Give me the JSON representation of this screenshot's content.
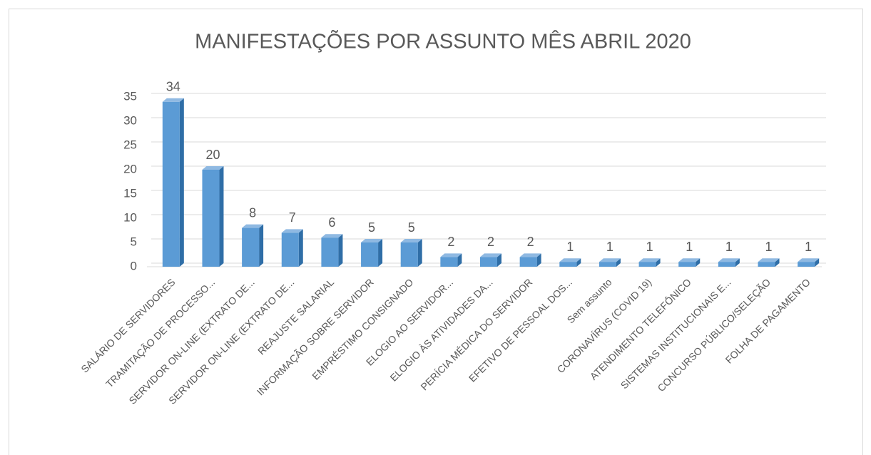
{
  "chart_data": {
    "type": "bar3d",
    "title": "MANIFESTAÇÕES POR ASSUNTO MÊS ABRIL 2020",
    "categories": [
      "SALÁRIO DE SERVIDORES",
      "TRAMITAÇÃO DE PROCESSO...",
      "SERVIDOR ON-LINE (EXTRATO DE...",
      "SERVIDOR ON-LINE (EXTRATO DE...",
      "REAJUSTE SALARIAL",
      "INFORMAÇÃO SOBRE SERVIDOR",
      "EMPRÉSTIMO CONSIGNADO",
      "ELOGIO AO SERVIDOR...",
      "ELOGIO ÀS ATIVIDADES DA...",
      "PERÍCIA MÉDICA DO SERVIDOR",
      "EFETIVO DE PESSOAL DOS...",
      "Sem assunto",
      "CORONAVÍRUS (COVID 19)",
      "ATENDIMENTO TELEFÔNICO",
      "SISTEMAS INSTITUCIONAIS E...",
      "CONCURSO PÚBLICO/SELEÇÃO",
      "FOLHA DE PAGAMENTO"
    ],
    "values": [
      34,
      20,
      8,
      7,
      6,
      5,
      5,
      2,
      2,
      2,
      1,
      1,
      1,
      1,
      1,
      1,
      1
    ],
    "color": "#5b9bd5",
    "ylim": [
      0,
      35
    ],
    "yticks": [
      0,
      5,
      10,
      15,
      20,
      25,
      30,
      35
    ],
    "grid": true
  }
}
